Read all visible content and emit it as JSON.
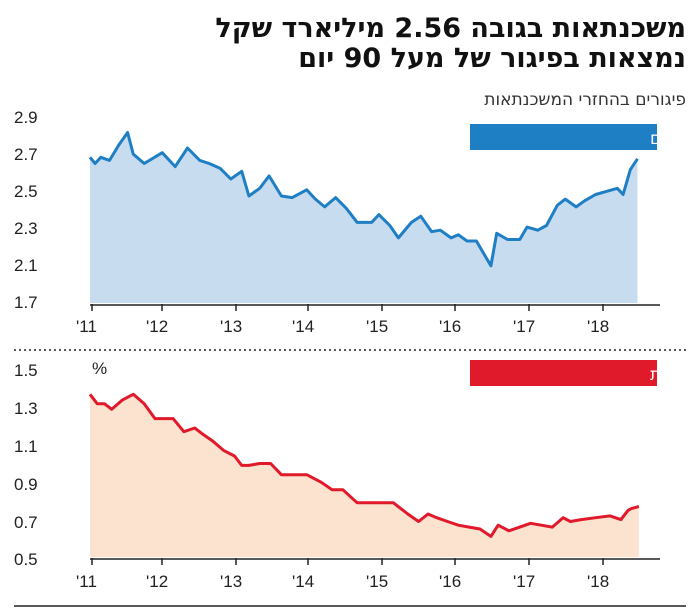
{
  "header": {
    "title_line1": "משכנתאות בגובה 2.56 מיליארד שקל",
    "title_line2": "נמצאות בפיגור של מעל 90 יום",
    "subtitle": "פיגורים בהחזרי המשכנתאות"
  },
  "colors": {
    "blue_line": "#1f7fc4",
    "blue_fill": "#c8dcef",
    "blue_badge": "#1f7fc4",
    "red_line": "#e0192b",
    "red_fill": "#fce3cf",
    "red_badge": "#e0192b"
  },
  "chart_data": [
    {
      "type": "area",
      "label": "במיליארדי שקלים",
      "x_tick_labels": [
        "'11",
        "'12",
        "'13",
        "'14",
        "'15",
        "'16",
        "'17",
        "'18"
      ],
      "y_tick_labels": [
        "2.9",
        "2.7",
        "2.5",
        "2.3",
        "2.1",
        "1.7"
      ],
      "ylim": [
        1.7,
        2.9
      ],
      "xlim": [
        2011.0,
        2018.85
      ],
      "x": [
        2011.0,
        2011.07,
        2011.15,
        2011.27,
        2011.4,
        2011.52,
        2011.6,
        2011.75,
        2012.0,
        2012.18,
        2012.35,
        2012.52,
        2012.65,
        2012.8,
        2012.95,
        2013.1,
        2013.2,
        2013.35,
        2013.48,
        2013.65,
        2013.8,
        2014.0,
        2014.12,
        2014.25,
        2014.4,
        2014.55,
        2014.7,
        2014.9,
        2015.0,
        2015.15,
        2015.27,
        2015.45,
        2015.58,
        2015.73,
        2015.85,
        2016.0,
        2016.1,
        2016.22,
        2016.35,
        2016.45,
        2016.55,
        2016.63,
        2016.78,
        2016.95,
        2017.05,
        2017.2,
        2017.32,
        2017.47,
        2017.58,
        2017.73,
        2017.85,
        2018.0,
        2018.15,
        2018.3,
        2018.38,
        2018.48,
        2018.58
      ],
      "y": [
        2.64,
        2.6,
        2.64,
        2.62,
        2.72,
        2.8,
        2.66,
        2.6,
        2.67,
        2.58,
        2.7,
        2.62,
        2.6,
        2.57,
        2.5,
        2.55,
        2.39,
        2.44,
        2.52,
        2.39,
        2.38,
        2.43,
        2.37,
        2.32,
        2.38,
        2.31,
        2.22,
        2.22,
        2.27,
        2.2,
        2.12,
        2.22,
        2.26,
        2.16,
        2.17,
        2.12,
        2.14,
        2.1,
        2.1,
        2.02,
        1.94,
        2.15,
        2.11,
        2.11,
        2.19,
        2.17,
        2.2,
        2.33,
        2.37,
        2.32,
        2.36,
        2.4,
        2.42,
        2.44,
        2.4,
        2.56,
        2.63
      ],
      "grid": false
    },
    {
      "type": "area",
      "label": "שיעור מסך כל המשכנתאות",
      "unit_label": "%",
      "x_tick_labels": [
        "'11",
        "'12",
        "'13",
        "'14",
        "'15",
        "'16",
        "'17",
        "'18"
      ],
      "y_tick_labels": [
        "1.5",
        "1.3",
        "1.1",
        "0.9",
        "0.7",
        "0.5"
      ],
      "ylim": [
        0.5,
        1.5
      ],
      "xlim": [
        2011.0,
        2018.85
      ],
      "x": [
        2011.0,
        2011.1,
        2011.2,
        2011.3,
        2011.45,
        2011.6,
        2011.75,
        2011.9,
        2012.0,
        2012.15,
        2012.3,
        2012.45,
        2012.55,
        2012.7,
        2012.85,
        2013.0,
        2013.1,
        2013.2,
        2013.35,
        2013.5,
        2013.65,
        2013.8,
        2014.0,
        2014.2,
        2014.35,
        2014.5,
        2014.7,
        2014.9,
        2015.0,
        2015.2,
        2015.4,
        2015.55,
        2015.68,
        2015.8,
        2015.95,
        2016.1,
        2016.25,
        2016.4,
        2016.55,
        2016.65,
        2016.8,
        2016.95,
        2017.1,
        2017.25,
        2017.4,
        2017.55,
        2017.65,
        2017.8,
        2018.0,
        2018.2,
        2018.35,
        2018.45,
        2018.5,
        2018.6
      ],
      "y": [
        1.37,
        1.32,
        1.32,
        1.29,
        1.34,
        1.37,
        1.32,
        1.24,
        1.24,
        1.24,
        1.17,
        1.19,
        1.16,
        1.12,
        1.07,
        1.04,
        0.99,
        0.99,
        1.0,
        1.0,
        0.94,
        0.94,
        0.94,
        0.9,
        0.86,
        0.86,
        0.79,
        0.79,
        0.79,
        0.79,
        0.73,
        0.69,
        0.73,
        0.71,
        0.69,
        0.67,
        0.66,
        0.65,
        0.61,
        0.67,
        0.64,
        0.66,
        0.68,
        0.67,
        0.66,
        0.71,
        0.69,
        0.7,
        0.71,
        0.72,
        0.7,
        0.75,
        0.76,
        0.77
      ],
      "grid": false
    }
  ]
}
